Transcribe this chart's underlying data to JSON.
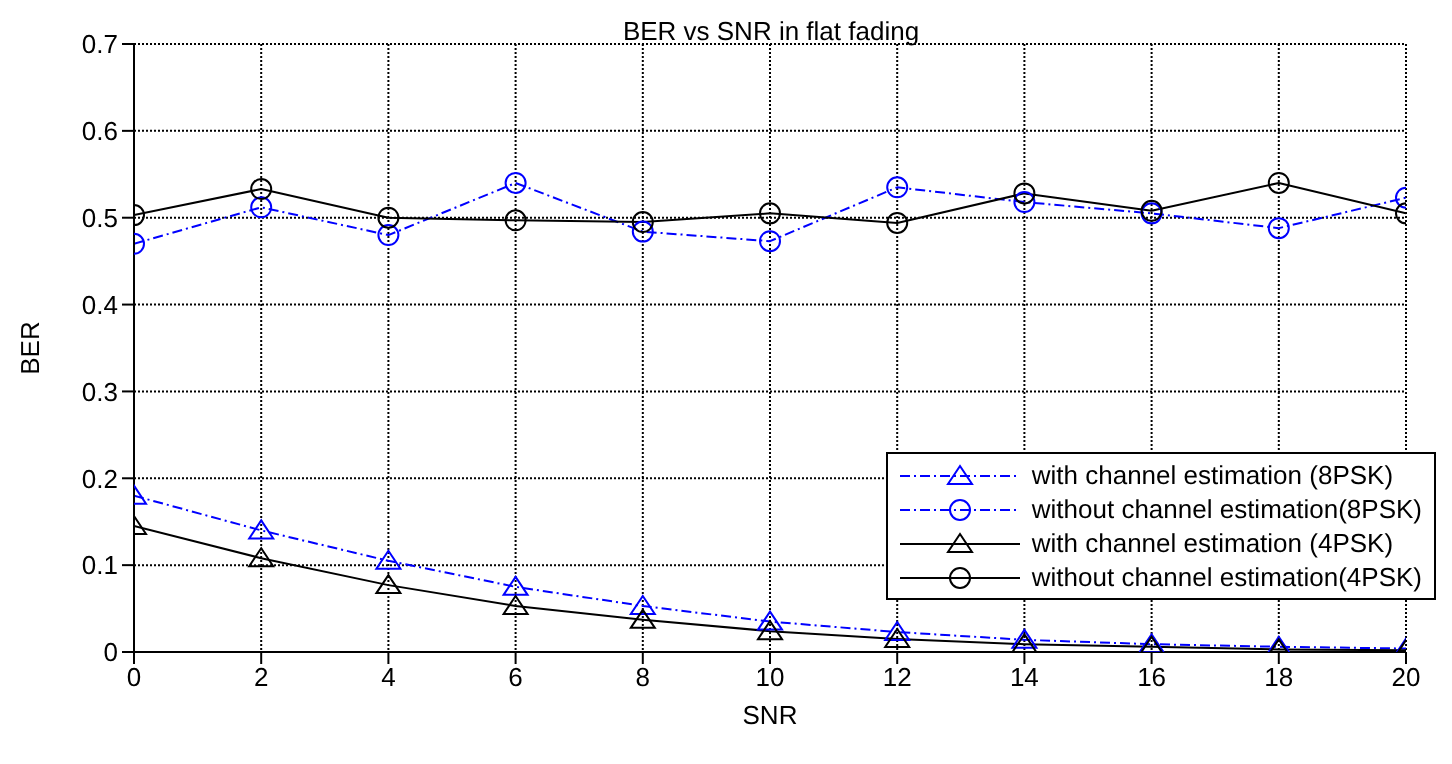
{
  "chart_data": {
    "type": "line",
    "title": "BER vs SNR in flat fading",
    "xlabel": "SNR",
    "ylabel": "BER",
    "x": [
      0,
      2,
      4,
      6,
      8,
      10,
      12,
      14,
      16,
      18,
      20
    ],
    "series": [
      {
        "name": "with channel estimation (8PSK)",
        "color": "#0000ff",
        "marker": "triangle",
        "line_style": "dashed",
        "values": [
          0.18,
          0.14,
          0.105,
          0.075,
          0.053,
          0.035,
          0.023,
          0.014,
          0.009,
          0.006,
          0.004
        ]
      },
      {
        "name": "without channel estimation(8PSK)",
        "color": "#0000ff",
        "marker": "circle",
        "line_style": "dashed",
        "values": [
          0.47,
          0.512,
          0.48,
          0.54,
          0.484,
          0.473,
          0.535,
          0.518,
          0.505,
          0.488,
          0.523
        ]
      },
      {
        "name": "with channel estimation (4PSK)",
        "color": "#000000",
        "marker": "triangle",
        "line_style": "solid",
        "values": [
          0.145,
          0.108,
          0.077,
          0.053,
          0.037,
          0.024,
          0.015,
          0.009,
          0.006,
          0.003,
          0.002
        ]
      },
      {
        "name": "without channel estimation(4PSK)",
        "color": "#000000",
        "marker": "circle",
        "line_style": "solid",
        "values": [
          0.503,
          0.533,
          0.5,
          0.497,
          0.495,
          0.505,
          0.494,
          0.528,
          0.508,
          0.54,
          0.505
        ]
      }
    ],
    "xlim": [
      0,
      20
    ],
    "xticks": [
      0,
      2,
      4,
      6,
      8,
      10,
      12,
      14,
      16,
      18,
      20
    ],
    "ylim": [
      0,
      0.7
    ],
    "yticks": [
      0,
      0.1,
      0.2,
      0.3,
      0.4,
      0.5,
      0.6,
      0.7
    ],
    "grid": true,
    "legend": "bottom right"
  }
}
